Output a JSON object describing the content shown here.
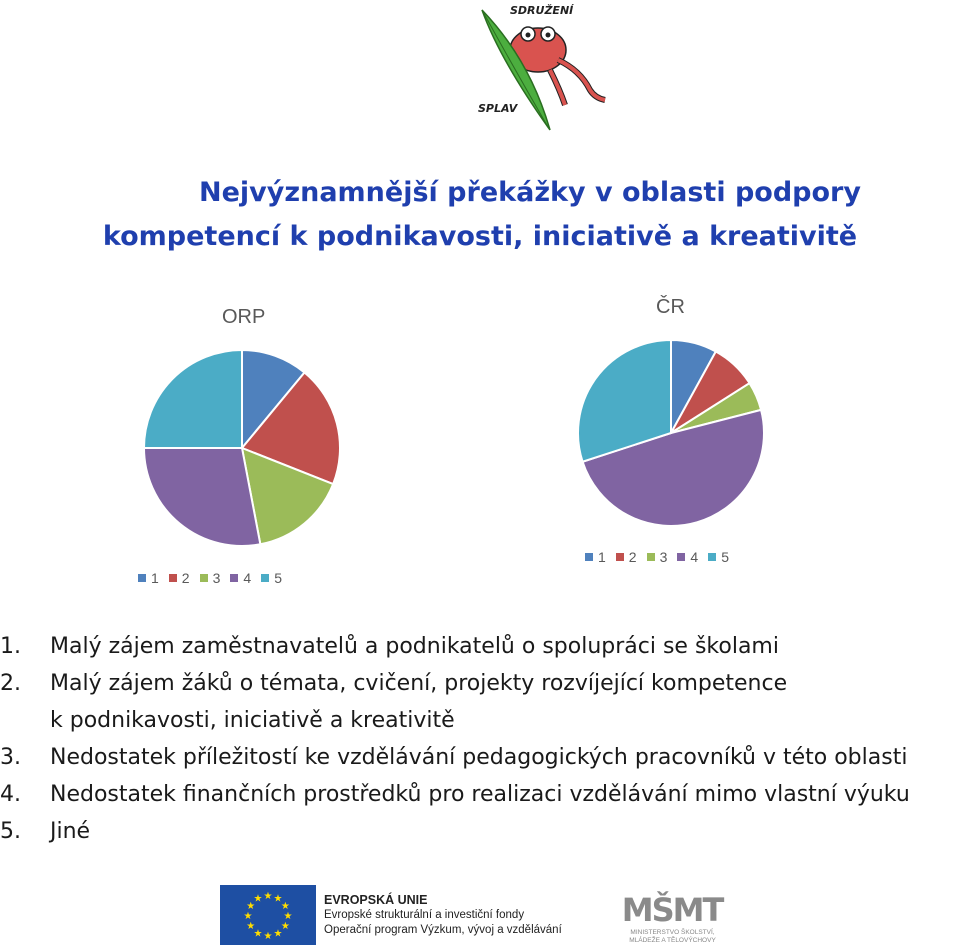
{
  "logo": {
    "text_top": "SDRUŽENÍ",
    "text_bottom": "SPLAV"
  },
  "title": {
    "line1": "Nejvýznamnější překážky v oblasti podpory",
    "line2": "kompetencí k podnikavosti, iniciativě a kreativitě"
  },
  "chart_data": [
    {
      "type": "pie",
      "title": "ORP",
      "categories": [
        "1",
        "2",
        "3",
        "4",
        "5"
      ],
      "values": [
        11,
        20,
        16,
        28,
        25
      ],
      "colors": [
        "#4f81bd",
        "#c0504d",
        "#9bbb59",
        "#8064a2",
        "#4bacc6"
      ],
      "legend_position": "bottom"
    },
    {
      "type": "pie",
      "title": "ČR",
      "categories": [
        "1",
        "2",
        "3",
        "4",
        "5"
      ],
      "values": [
        8,
        8,
        5,
        49,
        30
      ],
      "colors": [
        "#4f81bd",
        "#c0504d",
        "#9bbb59",
        "#8064a2",
        "#4bacc6"
      ],
      "legend_position": "top"
    }
  ],
  "list": [
    {
      "num": "1.",
      "text": "Malý zájem zaměstnavatelů a podnikatelů o spolupráci se školami"
    },
    {
      "num": "2.",
      "text": "Malý zájem žáků o témata, cvičení, projekty rozvíjející kompetence",
      "cont": "k podnikavosti, iniciativě a kreativitě"
    },
    {
      "num": "3.",
      "text": "Nedostatek příležitostí ke vzdělávání pedagogických pracovníků v této oblasti"
    },
    {
      "num": "4.",
      "text": "Nedostatek finančních prostředků pro realizaci vzdělávání mimo vlastní výuku"
    },
    {
      "num": "5.",
      "text": "Jiné"
    }
  ],
  "footer": {
    "eu_line1": "EVROPSKÁ UNIE",
    "eu_line2": "Evropské strukturální a investiční fondy",
    "eu_line3": "Operační program Výzkum, vývoj a vzdělávání",
    "msmt_line1": "MINISTERSTVO ŠKOLSTVÍ,",
    "msmt_line2": "MLÁDEŽE A TĚLOVÝCHOVY"
  }
}
